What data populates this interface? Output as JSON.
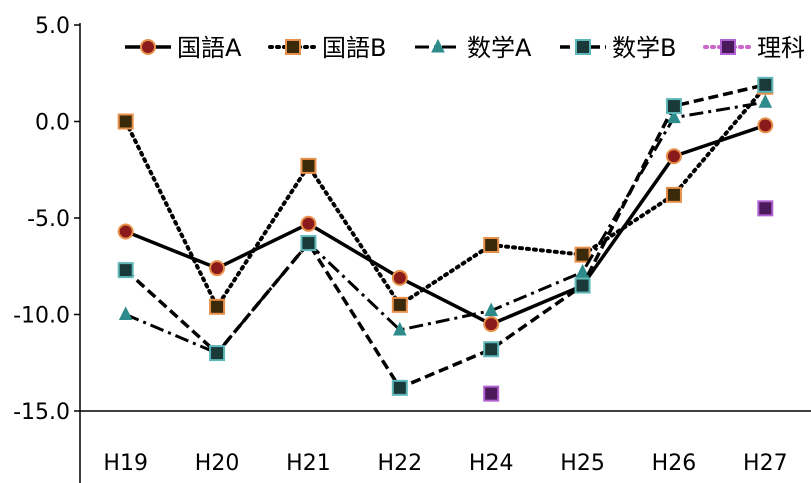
{
  "chart_data": {
    "type": "line",
    "categories": [
      "H19",
      "H20",
      "H21",
      "H22",
      "H24",
      "H25",
      "H26",
      "H27"
    ],
    "ylim": [
      -15,
      5
    ],
    "yticks": [
      "5.0",
      "0.0",
      "-5.0",
      "-10.0",
      "-15.0"
    ],
    "grid": false,
    "legend": "top",
    "series": [
      {
        "name": "国語A",
        "values": [
          -5.7,
          -7.6,
          -5.3,
          -8.1,
          -10.5,
          -8.5,
          -1.8,
          -0.2
        ],
        "line": "#000000",
        "marker": "circle",
        "markerFill": "#8b1a1a",
        "markerStroke": "#e8904a",
        "dash": "solid"
      },
      {
        "name": "国語B",
        "values": [
          0.0,
          -9.6,
          -2.3,
          -9.5,
          -6.4,
          -6.9,
          -3.8,
          1.8
        ],
        "line": "#000000",
        "marker": "square",
        "markerFill": "#3a2a0a",
        "markerStroke": "#e8904a",
        "dash": "dot"
      },
      {
        "name": "数学A",
        "values": [
          -10.0,
          -12.0,
          -6.3,
          -10.8,
          -9.8,
          -7.8,
          0.2,
          1.0
        ],
        "line": "#000000",
        "marker": "triangle",
        "markerFill": "#2e8b8b",
        "markerStroke": "#2e8b8b",
        "dash": "dashdot"
      },
      {
        "name": "数学B",
        "values": [
          -7.7,
          -12.0,
          -6.3,
          -13.8,
          -11.8,
          -8.5,
          0.8,
          1.9
        ],
        "line": "#000000",
        "marker": "square",
        "markerFill": "#1a3a3a",
        "markerStroke": "#5fb8b8",
        "dash": "dash"
      },
      {
        "name": "理科",
        "values": [
          null,
          null,
          null,
          null,
          -14.1,
          null,
          null,
          -4.5
        ],
        "line": "#cc66cc",
        "marker": "square",
        "markerFill": "#4a1a5a",
        "markerStroke": "#b060d0",
        "dash": "dot"
      }
    ]
  }
}
